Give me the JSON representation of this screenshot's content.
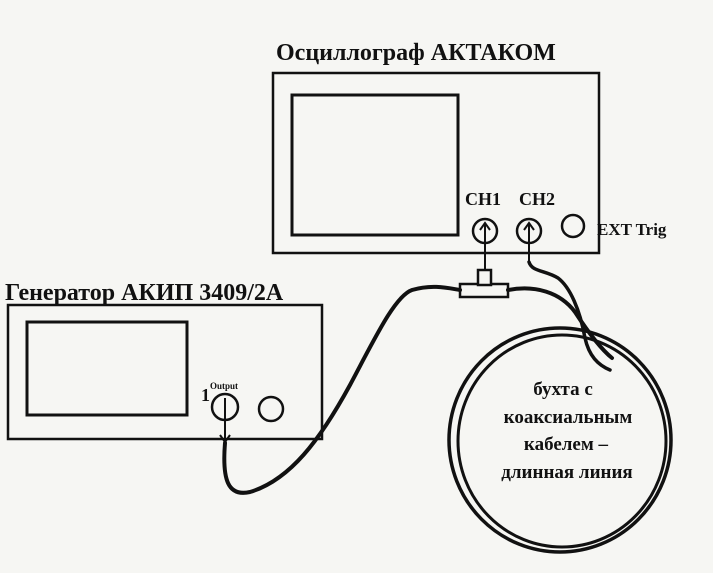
{
  "oscilloscope": {
    "title": "Осциллограф АКТАКОМ",
    "ch1": "CH1",
    "ch2": "CH2",
    "ext_trig": "EXT Trig"
  },
  "generator": {
    "title": "Генератор АКИП 3409/2А",
    "channel_number": "1",
    "output_label": "Output"
  },
  "coil": {
    "line1": "бухта  с",
    "line2": "коаксиальным",
    "line3": "кабелем –",
    "line4": "длинная линия"
  }
}
